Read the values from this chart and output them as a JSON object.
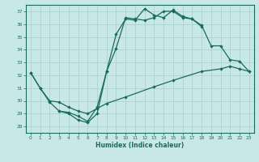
{
  "background_color": "#c8e8e8",
  "grid_color": "#a8cccc",
  "line_color": "#1a6b5a",
  "xlabel": "Humidex (Indice chaleur)",
  "xlim": [
    -0.5,
    23.5
  ],
  "ylim": [
    27.5,
    37.5
  ],
  "xtick_labels": [
    "0",
    "1",
    "2",
    "3",
    "4",
    "5",
    "6",
    "7",
    "8",
    "9",
    "10",
    "11",
    "12",
    "13",
    "14",
    "15",
    "16",
    "17",
    "18",
    "19",
    "20",
    "21",
    "22",
    "23"
  ],
  "ytick_vals": [
    28,
    29,
    30,
    31,
    32,
    33,
    34,
    35,
    36,
    37
  ],
  "ytick_labels": [
    "28",
    "29",
    "30",
    "31",
    "32",
    "33",
    "34",
    "35",
    "36",
    "37"
  ],
  "line1_x": [
    0,
    1,
    2,
    3,
    4,
    5,
    6,
    7,
    8,
    9,
    10,
    11,
    12,
    13,
    14,
    15,
    16,
    17,
    18
  ],
  "line1_y": [
    32.2,
    31.0,
    29.9,
    29.2,
    29.0,
    28.5,
    28.3,
    29.0,
    32.3,
    35.2,
    36.4,
    36.3,
    37.2,
    36.7,
    36.5,
    37.1,
    36.6,
    36.4,
    35.8
  ],
  "line2_x": [
    3,
    4,
    5,
    6,
    7,
    8,
    9,
    10,
    11,
    12,
    13,
    14,
    15,
    16,
    17,
    18,
    19,
    20,
    21,
    22,
    23
  ],
  "line2_y": [
    29.2,
    29.1,
    28.8,
    28.4,
    29.5,
    32.3,
    34.1,
    36.5,
    36.4,
    36.3,
    36.5,
    37.0,
    37.0,
    36.5,
    36.4,
    35.9,
    34.3,
    34.3,
    33.2,
    33.1,
    32.3
  ],
  "line3_x": [
    0,
    1,
    2,
    3,
    4,
    5,
    6,
    7,
    8,
    10,
    13,
    15,
    18,
    20,
    21,
    22,
    23
  ],
  "line3_y": [
    32.2,
    31.0,
    30.0,
    29.9,
    29.5,
    29.2,
    29.0,
    29.4,
    29.8,
    30.3,
    31.1,
    31.6,
    32.3,
    32.5,
    32.7,
    32.5,
    32.3
  ],
  "line_width": 0.9,
  "marker_size": 2.2,
  "label_fontsize": 5.5,
  "tick_fontsize": 4.2
}
